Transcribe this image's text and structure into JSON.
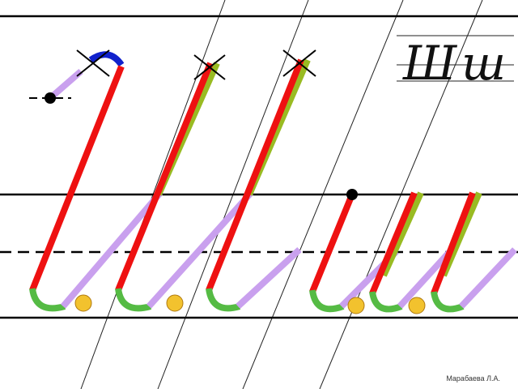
{
  "sample": {
    "letters": "Шш"
  },
  "footer": {
    "author": "Марабаева Л.А."
  }
}
